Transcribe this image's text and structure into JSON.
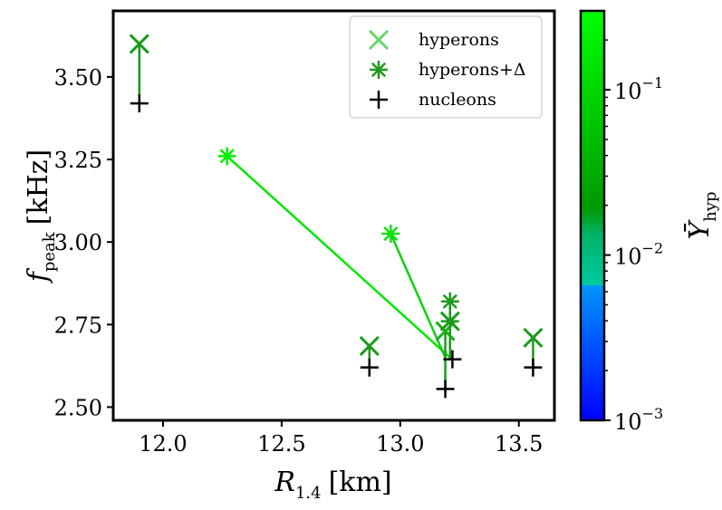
{
  "chart_data": {
    "type": "scatter",
    "x_label": "R",
    "x_label_sub": "1.4",
    "x_label_unit": "[km]",
    "y_label": "f",
    "y_label_sub": "peak",
    "y_label_unit": "[kHz]",
    "xlim": [
      11.79,
      13.65
    ],
    "ylim": [
      2.46,
      3.7
    ],
    "x_ticks": [
      12.0,
      12.5,
      13.0,
      13.5
    ],
    "x_tick_labels": [
      "12.0",
      "12.5",
      "13.0",
      "13.5"
    ],
    "y_ticks": [
      2.5,
      2.75,
      3.0,
      3.25,
      3.5
    ],
    "y_tick_labels": [
      "2.50",
      "2.75",
      "3.00",
      "3.25",
      "3.50"
    ],
    "colorbar": {
      "label": "Ȳ",
      "label_sub": "hyp",
      "scale": "log",
      "range": [
        0.001,
        0.3
      ],
      "ticks": [
        0.001,
        0.01,
        0.1
      ],
      "tick_base": "10",
      "tick_exponents": [
        "−3",
        "−2",
        "−1"
      ],
      "colors": [
        "#0000ff",
        "#0096ff",
        "#00c8a0",
        "#00aa00",
        "#00ff00"
      ]
    },
    "legend": [
      {
        "name": "hyperons",
        "marker": "x",
        "color": "#6ad36a"
      },
      {
        "name": "hyperons+Δ",
        "marker": "asterisk",
        "color": "#1e9a1e"
      },
      {
        "name": "nucleons",
        "marker": "plus",
        "color": "#000000"
      }
    ],
    "series": [
      {
        "name": "nucleons",
        "marker": "plus",
        "points": [
          {
            "x": 11.9,
            "y": 3.42
          },
          {
            "x": 12.87,
            "y": 2.62
          },
          {
            "x": 13.19,
            "y": 2.555
          },
          {
            "x": 13.22,
            "y": 2.645
          },
          {
            "x": 13.56,
            "y": 2.62
          }
        ]
      },
      {
        "name": "hyperons",
        "marker": "x",
        "points": [
          {
            "x": 11.9,
            "y": 3.6,
            "color": "#1a9a1a"
          },
          {
            "x": 12.87,
            "y": 2.685,
            "color": "#1a9a1a"
          },
          {
            "x": 13.19,
            "y": 2.73,
            "color": "#18b018"
          },
          {
            "x": 13.21,
            "y": 2.76,
            "color": "#1a9a1a"
          },
          {
            "x": 13.56,
            "y": 2.71,
            "color": "#1a9a1a"
          }
        ]
      },
      {
        "name": "hyperons+Δ",
        "marker": "asterisk",
        "points": [
          {
            "x": 12.27,
            "y": 3.26,
            "color": "#00f000"
          },
          {
            "x": 12.96,
            "y": 3.025,
            "color": "#10e010"
          },
          {
            "x": 13.21,
            "y": 2.82,
            "color": "#1a9a1a"
          },
          {
            "x": 13.21,
            "y": 2.76,
            "color": "#1a9a1a"
          }
        ]
      }
    ],
    "connectors": [
      {
        "from": [
          11.9,
          3.42
        ],
        "to": [
          11.9,
          3.6
        ],
        "color": "#1a9a1a"
      },
      {
        "from": [
          12.87,
          2.62
        ],
        "to": [
          12.87,
          2.685
        ],
        "color": "#1a9a1a"
      },
      {
        "from": [
          13.56,
          2.62
        ],
        "to": [
          13.56,
          2.71
        ],
        "color": "#1a9a1a"
      },
      {
        "from": [
          12.27,
          3.26
        ],
        "to": [
          13.21,
          2.65
        ],
        "color": "#00e600"
      },
      {
        "from": [
          12.96,
          3.025
        ],
        "to": [
          13.19,
          2.65
        ],
        "color": "#10d010"
      },
      {
        "from": [
          13.19,
          2.555
        ],
        "to": [
          13.19,
          2.73
        ],
        "color": "#1a9a1a"
      },
      {
        "from": [
          13.21,
          2.645
        ],
        "to": [
          13.21,
          2.82
        ],
        "color": "#1a9a1a"
      }
    ]
  }
}
